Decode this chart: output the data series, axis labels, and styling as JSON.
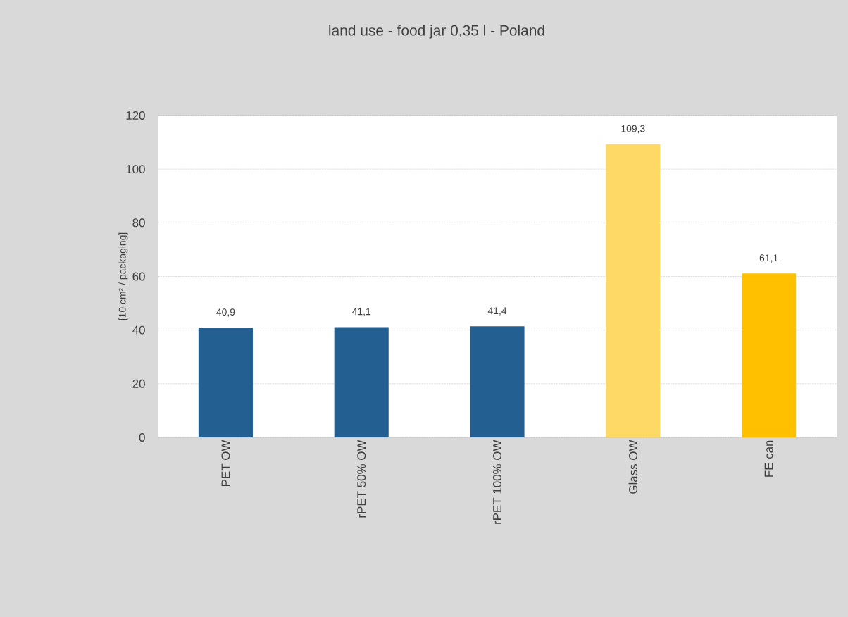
{
  "chart_data": {
    "type": "bar",
    "title": "land use - food jar 0,35 l - Poland",
    "ylabel": "[10 cm² / packaging]",
    "categories": [
      "PET OW",
      "rPET 50% OW",
      "rPET 100% OW",
      "Glass OW",
      "FE can"
    ],
    "values": [
      40.9,
      41.1,
      41.4,
      109.3,
      61.1
    ],
    "colors": [
      "#245f91",
      "#245f91",
      "#245f91",
      "#ffd966",
      "#ffc000"
    ],
    "value_labels": [
      "40,9",
      "41,1",
      "41,4",
      "109,3",
      "61,1"
    ],
    "ylim": [
      0,
      120
    ],
    "yticks": [
      0,
      20,
      40,
      60,
      80,
      100,
      120
    ],
    "grid": "y"
  }
}
